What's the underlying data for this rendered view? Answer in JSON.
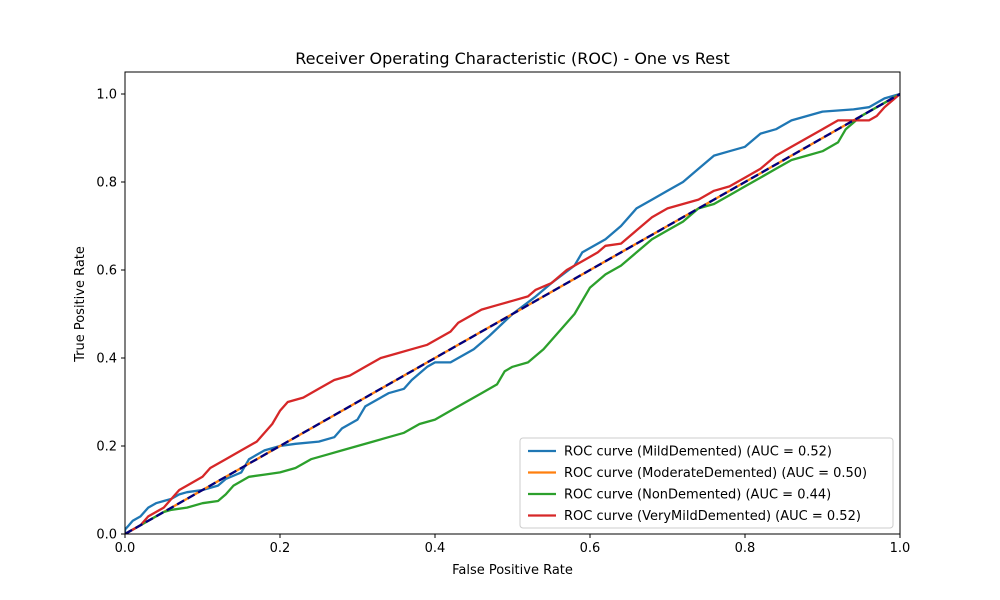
{
  "chart_data": {
    "type": "line",
    "title": "Receiver Operating Characteristic (ROC) - One vs Rest",
    "xlabel": "False Positive Rate",
    "ylabel": "True Positive Rate",
    "xlim": [
      0.0,
      1.0
    ],
    "ylim": [
      0.0,
      1.05
    ],
    "xticks": [
      0.0,
      0.2,
      0.4,
      0.6,
      0.8,
      1.0
    ],
    "yticks": [
      0.0,
      0.2,
      0.4,
      0.6,
      0.8,
      1.0
    ],
    "xtick_labels": [
      "0.0",
      "0.2",
      "0.4",
      "0.6",
      "0.8",
      "1.0"
    ],
    "ytick_labels": [
      "0.0",
      "0.2",
      "0.4",
      "0.6",
      "0.8",
      "1.0"
    ],
    "grid": false,
    "legend_position": "lower-right",
    "series": [
      {
        "name": "ROC curve (MildDemented) (AUC = 0.52)",
        "color": "#1f77b4",
        "points": [
          [
            0,
            0
          ],
          [
            0,
            0.01
          ],
          [
            0.005,
            0.02
          ],
          [
            0.01,
            0.03
          ],
          [
            0.02,
            0.04
          ],
          [
            0.03,
            0.06
          ],
          [
            0.04,
            0.07
          ],
          [
            0.05,
            0.075
          ],
          [
            0.06,
            0.08
          ],
          [
            0.07,
            0.09
          ],
          [
            0.08,
            0.095
          ],
          [
            0.1,
            0.1
          ],
          [
            0.12,
            0.11
          ],
          [
            0.13,
            0.125
          ],
          [
            0.15,
            0.14
          ],
          [
            0.16,
            0.17
          ],
          [
            0.18,
            0.19
          ],
          [
            0.2,
            0.2
          ],
          [
            0.22,
            0.205
          ],
          [
            0.25,
            0.21
          ],
          [
            0.27,
            0.22
          ],
          [
            0.28,
            0.24
          ],
          [
            0.3,
            0.26
          ],
          [
            0.31,
            0.29
          ],
          [
            0.32,
            0.3
          ],
          [
            0.34,
            0.32
          ],
          [
            0.36,
            0.33
          ],
          [
            0.37,
            0.35
          ],
          [
            0.39,
            0.38
          ],
          [
            0.4,
            0.39
          ],
          [
            0.42,
            0.39
          ],
          [
            0.45,
            0.42
          ],
          [
            0.47,
            0.45
          ],
          [
            0.5,
            0.5
          ],
          [
            0.53,
            0.54
          ],
          [
            0.55,
            0.57
          ],
          [
            0.58,
            0.61
          ],
          [
            0.59,
            0.64
          ],
          [
            0.6,
            0.65
          ],
          [
            0.62,
            0.67
          ],
          [
            0.64,
            0.7
          ],
          [
            0.66,
            0.74
          ],
          [
            0.68,
            0.76
          ],
          [
            0.7,
            0.78
          ],
          [
            0.72,
            0.8
          ],
          [
            0.74,
            0.83
          ],
          [
            0.76,
            0.86
          ],
          [
            0.78,
            0.87
          ],
          [
            0.8,
            0.88
          ],
          [
            0.82,
            0.91
          ],
          [
            0.84,
            0.92
          ],
          [
            0.86,
            0.94
          ],
          [
            0.88,
            0.95
          ],
          [
            0.9,
            0.96
          ],
          [
            0.94,
            0.965
          ],
          [
            0.96,
            0.97
          ],
          [
            0.98,
            0.99
          ],
          [
            1.0,
            1.0
          ]
        ]
      },
      {
        "name": "ROC curve (ModerateDemented) (AUC = 0.50)",
        "color": "#ff7f0e",
        "points": [
          [
            0,
            0
          ],
          [
            1.0,
            1.0
          ]
        ]
      },
      {
        "name": "ROC curve (NonDemented) (AUC = 0.44)",
        "color": "#2ca02c",
        "points": [
          [
            0,
            0
          ],
          [
            0.01,
            0.01
          ],
          [
            0.02,
            0.02
          ],
          [
            0.03,
            0.03
          ],
          [
            0.04,
            0.04
          ],
          [
            0.05,
            0.05
          ],
          [
            0.06,
            0.055
          ],
          [
            0.08,
            0.06
          ],
          [
            0.1,
            0.07
          ],
          [
            0.12,
            0.075
          ],
          [
            0.13,
            0.09
          ],
          [
            0.14,
            0.11
          ],
          [
            0.16,
            0.13
          ],
          [
            0.18,
            0.135
          ],
          [
            0.2,
            0.14
          ],
          [
            0.22,
            0.15
          ],
          [
            0.24,
            0.17
          ],
          [
            0.26,
            0.18
          ],
          [
            0.28,
            0.19
          ],
          [
            0.3,
            0.2
          ],
          [
            0.32,
            0.21
          ],
          [
            0.34,
            0.22
          ],
          [
            0.36,
            0.23
          ],
          [
            0.38,
            0.25
          ],
          [
            0.4,
            0.26
          ],
          [
            0.42,
            0.28
          ],
          [
            0.44,
            0.3
          ],
          [
            0.46,
            0.32
          ],
          [
            0.48,
            0.34
          ],
          [
            0.49,
            0.37
          ],
          [
            0.5,
            0.38
          ],
          [
            0.52,
            0.39
          ],
          [
            0.54,
            0.42
          ],
          [
            0.56,
            0.46
          ],
          [
            0.58,
            0.5
          ],
          [
            0.6,
            0.56
          ],
          [
            0.62,
            0.59
          ],
          [
            0.64,
            0.61
          ],
          [
            0.66,
            0.64
          ],
          [
            0.68,
            0.67
          ],
          [
            0.7,
            0.69
          ],
          [
            0.72,
            0.71
          ],
          [
            0.74,
            0.74
          ],
          [
            0.76,
            0.75
          ],
          [
            0.78,
            0.77
          ],
          [
            0.8,
            0.79
          ],
          [
            0.82,
            0.81
          ],
          [
            0.84,
            0.83
          ],
          [
            0.86,
            0.85
          ],
          [
            0.88,
            0.86
          ],
          [
            0.9,
            0.87
          ],
          [
            0.92,
            0.89
          ],
          [
            0.93,
            0.92
          ],
          [
            0.95,
            0.95
          ],
          [
            0.97,
            0.97
          ],
          [
            0.99,
            0.99
          ],
          [
            1.0,
            1.0
          ]
        ]
      },
      {
        "name": "ROC curve (VeryMildDemented) (AUC = 0.52)",
        "color": "#d62728",
        "points": [
          [
            0,
            0
          ],
          [
            0.01,
            0.01
          ],
          [
            0.02,
            0.02
          ],
          [
            0.03,
            0.04
          ],
          [
            0.04,
            0.05
          ],
          [
            0.05,
            0.06
          ],
          [
            0.06,
            0.08
          ],
          [
            0.07,
            0.1
          ],
          [
            0.08,
            0.11
          ],
          [
            0.1,
            0.13
          ],
          [
            0.11,
            0.15
          ],
          [
            0.13,
            0.17
          ],
          [
            0.15,
            0.19
          ],
          [
            0.17,
            0.21
          ],
          [
            0.19,
            0.25
          ],
          [
            0.2,
            0.28
          ],
          [
            0.21,
            0.3
          ],
          [
            0.23,
            0.31
          ],
          [
            0.25,
            0.33
          ],
          [
            0.27,
            0.35
          ],
          [
            0.29,
            0.36
          ],
          [
            0.31,
            0.38
          ],
          [
            0.33,
            0.4
          ],
          [
            0.35,
            0.41
          ],
          [
            0.37,
            0.42
          ],
          [
            0.39,
            0.43
          ],
          [
            0.41,
            0.45
          ],
          [
            0.42,
            0.46
          ],
          [
            0.43,
            0.48
          ],
          [
            0.44,
            0.49
          ],
          [
            0.46,
            0.51
          ],
          [
            0.48,
            0.52
          ],
          [
            0.5,
            0.53
          ],
          [
            0.52,
            0.54
          ],
          [
            0.53,
            0.555
          ],
          [
            0.55,
            0.57
          ],
          [
            0.57,
            0.6
          ],
          [
            0.59,
            0.62
          ],
          [
            0.61,
            0.64
          ],
          [
            0.62,
            0.655
          ],
          [
            0.64,
            0.66
          ],
          [
            0.66,
            0.69
          ],
          [
            0.68,
            0.72
          ],
          [
            0.7,
            0.74
          ],
          [
            0.72,
            0.75
          ],
          [
            0.74,
            0.76
          ],
          [
            0.76,
            0.78
          ],
          [
            0.78,
            0.79
          ],
          [
            0.8,
            0.81
          ],
          [
            0.82,
            0.83
          ],
          [
            0.84,
            0.86
          ],
          [
            0.86,
            0.88
          ],
          [
            0.88,
            0.9
          ],
          [
            0.9,
            0.92
          ],
          [
            0.92,
            0.94
          ],
          [
            0.94,
            0.94
          ],
          [
            0.96,
            0.94
          ],
          [
            0.97,
            0.95
          ],
          [
            0.98,
            0.97
          ],
          [
            1.0,
            1.0
          ]
        ]
      }
    ],
    "reference_line": {
      "points": [
        [
          0,
          0
        ],
        [
          1.0,
          1.0
        ]
      ],
      "color": "#000080",
      "style": "dashed"
    }
  }
}
